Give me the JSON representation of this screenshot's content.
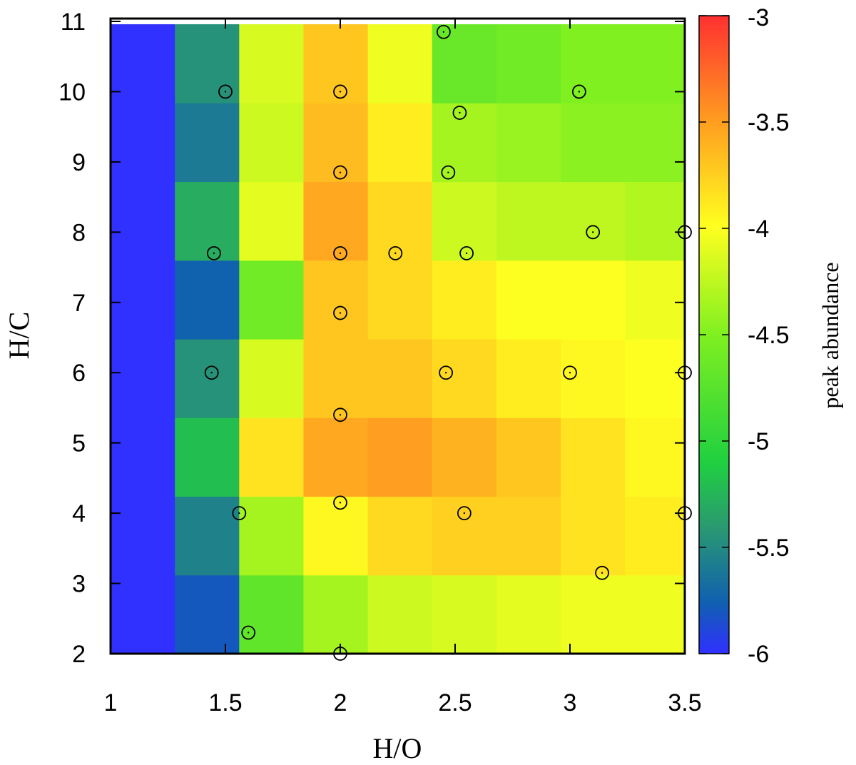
{
  "chart_data": {
    "type": "heatmap",
    "xlabel": "H/O",
    "ylabel": "H/C",
    "colorbar_label": "peak abundance",
    "xlim": [
      1,
      3.5
    ],
    "ylim": [
      2,
      11
    ],
    "x_ticks": [
      "1",
      "1.5",
      "2",
      "2.5",
      "3",
      "3.5"
    ],
    "y_ticks": [
      "2",
      "3",
      "4",
      "5",
      "6",
      "7",
      "8",
      "9",
      "10",
      "11"
    ],
    "colorbar_range": [
      -6,
      -3
    ],
    "colorbar_ticks": [
      "-3",
      "-3.5",
      "-4",
      "-4.5",
      "-5",
      "-5.5",
      "-6"
    ],
    "x_bins": [
      1.0,
      1.28,
      1.56,
      1.84,
      2.12,
      2.4,
      2.68,
      2.96,
      3.24,
      3.5
    ],
    "y_bins": [
      2.0,
      3.12,
      4.24,
      5.36,
      6.48,
      7.6,
      8.72,
      9.84,
      10.96
    ],
    "values": [
      [
        -6.0,
        -5.8,
        -4.7,
        -4.35,
        -4.2,
        -4.15,
        -4.1,
        -4.05,
        -4.05
      ],
      [
        -6.0,
        -5.55,
        -4.35,
        -3.95,
        -3.8,
        -3.75,
        -3.75,
        -3.85,
        -3.9
      ],
      [
        -6.0,
        -5.2,
        -3.85,
        -3.55,
        -3.5,
        -3.6,
        -3.7,
        -3.85,
        -3.95
      ],
      [
        -6.0,
        -5.45,
        -4.15,
        -3.7,
        -3.7,
        -3.8,
        -3.9,
        -3.95,
        -4.0
      ],
      [
        -6.0,
        -5.75,
        -4.6,
        -3.7,
        -3.8,
        -3.9,
        -4.0,
        -4.0,
        -4.05
      ],
      [
        -6.0,
        -5.3,
        -4.1,
        -3.55,
        -3.8,
        -4.2,
        -4.25,
        -4.25,
        -4.3
      ],
      [
        -6.0,
        -5.6,
        -4.2,
        -3.65,
        -3.9,
        -4.35,
        -4.4,
        -4.45,
        -4.45
      ],
      [
        -6.0,
        -5.45,
        -4.15,
        -3.7,
        -4.05,
        -4.65,
        -4.6,
        -4.5,
        -4.5
      ]
    ],
    "points": [
      {
        "x": 1.5,
        "y": 10.0
      },
      {
        "x": 2.0,
        "y": 10.0
      },
      {
        "x": 2.45,
        "y": 10.85
      },
      {
        "x": 2.52,
        "y": 9.7
      },
      {
        "x": 3.04,
        "y": 10.0
      },
      {
        "x": 2.0,
        "y": 8.85
      },
      {
        "x": 2.47,
        "y": 8.85
      },
      {
        "x": 1.45,
        "y": 7.7
      },
      {
        "x": 2.0,
        "y": 7.7
      },
      {
        "x": 2.24,
        "y": 7.7
      },
      {
        "x": 2.55,
        "y": 7.7
      },
      {
        "x": 3.1,
        "y": 8.0
      },
      {
        "x": 3.5,
        "y": 8.0
      },
      {
        "x": 2.0,
        "y": 6.85
      },
      {
        "x": 1.44,
        "y": 6.0
      },
      {
        "x": 2.46,
        "y": 6.0
      },
      {
        "x": 3.0,
        "y": 6.0
      },
      {
        "x": 3.5,
        "y": 6.0
      },
      {
        "x": 2.0,
        "y": 5.4
      },
      {
        "x": 1.56,
        "y": 4.0
      },
      {
        "x": 2.0,
        "y": 4.15
      },
      {
        "x": 2.54,
        "y": 4.0
      },
      {
        "x": 3.5,
        "y": 4.0
      },
      {
        "x": 3.14,
        "y": 3.15
      },
      {
        "x": 1.6,
        "y": 2.3
      },
      {
        "x": 2.0,
        "y": 2.0
      }
    ]
  }
}
